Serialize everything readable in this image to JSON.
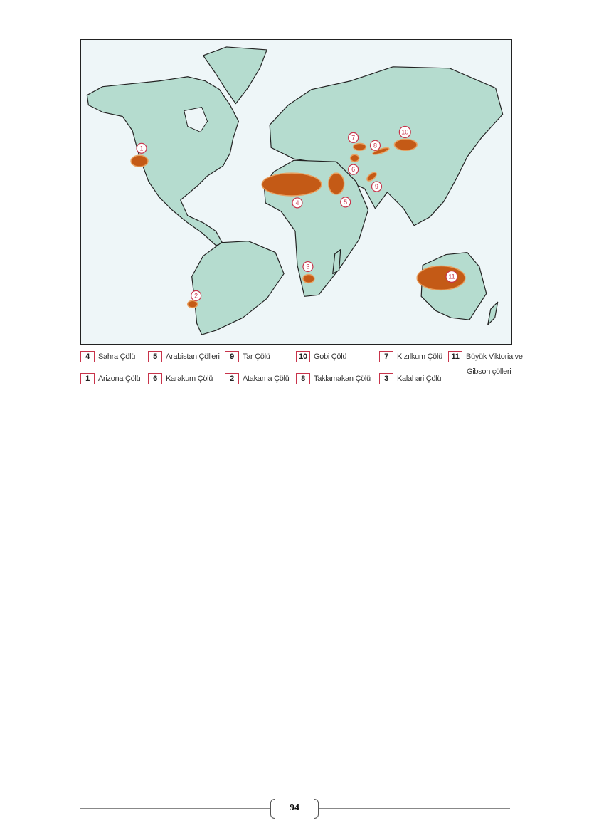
{
  "map": {
    "colors": {
      "land": "#b5dccf",
      "desert": "#c45a16",
      "marker": "#c8334a",
      "ocean": "#eef6f8"
    },
    "markers": [
      "1",
      "2",
      "3",
      "4",
      "5",
      "6",
      "7",
      "8",
      "9",
      "10",
      "11"
    ]
  },
  "legend": [
    {
      "num": "4",
      "label": "Sahra Çölü"
    },
    {
      "num": "5",
      "label": "Arabistan Çölleri"
    },
    {
      "num": "9",
      "label": "Tar Çölü"
    },
    {
      "num": "10",
      "label": "Gobi Çölü"
    },
    {
      "num": "7",
      "label": "Kızılkum Çölü"
    },
    {
      "num": "11",
      "label": "Büyük Viktoria ve",
      "label2": "Gibson çölleri"
    },
    {
      "num": "1",
      "label": "Arizona Çölü"
    },
    {
      "num": "6",
      "label": "Karakum Çölü"
    },
    {
      "num": "2",
      "label": "Atakama Çölü"
    },
    {
      "num": "8",
      "label": "Taklamakan Çölü"
    },
    {
      "num": "3",
      "label": "Kalahari Çölü"
    }
  ],
  "footer": {
    "page_number": "94"
  }
}
